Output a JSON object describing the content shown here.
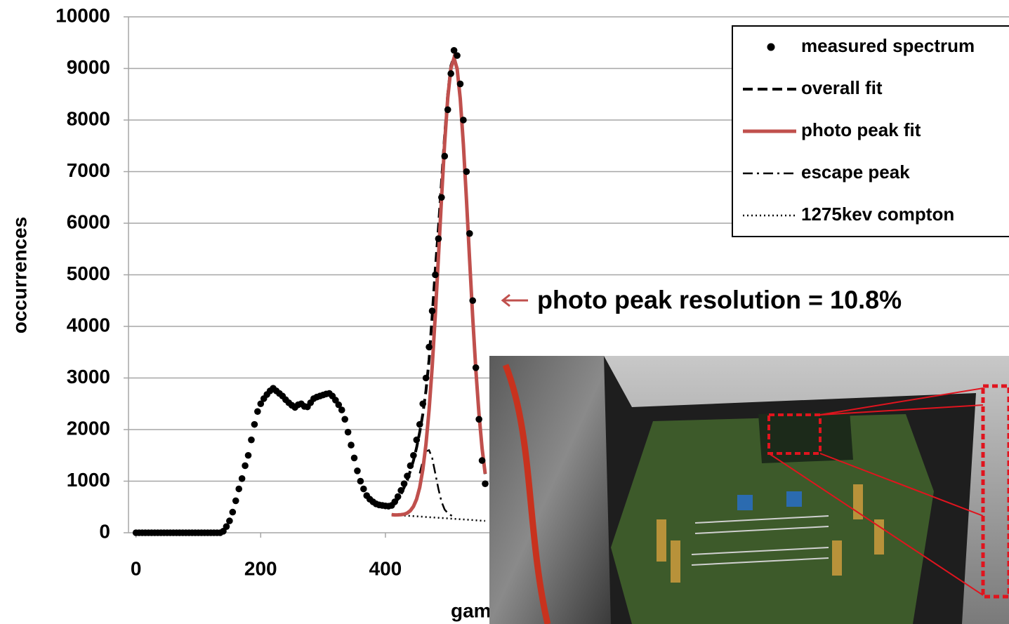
{
  "chart_data": {
    "type": "scatter-line",
    "y_label": "occurrences",
    "x_label": "gamma",
    "annotation": "photo peak resolution = 10.8%",
    "xlim": [
      -12,
      1400
    ],
    "xticks": [
      0,
      200,
      400
    ],
    "ylim": [
      0,
      10000
    ],
    "yticks": [
      0,
      1000,
      2000,
      3000,
      4000,
      5000,
      6000,
      7000,
      8000,
      9000,
      10000
    ],
    "grid": true,
    "legend": "top-right",
    "series": [
      {
        "name": "measured spectrum",
        "style": "dots",
        "color": "#000000",
        "x": [
          0,
          5,
          10,
          15,
          20,
          25,
          30,
          35,
          40,
          45,
          50,
          55,
          60,
          65,
          70,
          75,
          80,
          85,
          90,
          95,
          100,
          105,
          110,
          115,
          120,
          125,
          130,
          135,
          140,
          145,
          150,
          155,
          160,
          165,
          170,
          175,
          180,
          185,
          190,
          195,
          200,
          205,
          210,
          215,
          220,
          225,
          230,
          235,
          240,
          245,
          250,
          255,
          260,
          265,
          270,
          275,
          280,
          285,
          290,
          295,
          300,
          305,
          310,
          315,
          320,
          325,
          330,
          335,
          340,
          345,
          350,
          355,
          360,
          365,
          370,
          375,
          380,
          385,
          390,
          395,
          400,
          405,
          410,
          415,
          420,
          425,
          430,
          435,
          440,
          445,
          450,
          455,
          460,
          465,
          470,
          475,
          480,
          485,
          490,
          495,
          500,
          505,
          510,
          515,
          520,
          525,
          530,
          535,
          540,
          545,
          550,
          555,
          560
        ],
        "values": [
          0,
          0,
          0,
          0,
          0,
          0,
          0,
          0,
          0,
          0,
          0,
          0,
          0,
          0,
          0,
          0,
          0,
          0,
          0,
          0,
          0,
          0,
          0,
          0,
          0,
          0,
          0,
          0,
          30,
          120,
          230,
          400,
          620,
          850,
          1050,
          1300,
          1500,
          1800,
          2100,
          2350,
          2500,
          2600,
          2680,
          2750,
          2800,
          2750,
          2700,
          2650,
          2580,
          2520,
          2470,
          2430,
          2480,
          2500,
          2450,
          2440,
          2520,
          2600,
          2630,
          2650,
          2670,
          2690,
          2700,
          2650,
          2570,
          2480,
          2380,
          2200,
          1950,
          1700,
          1450,
          1200,
          1000,
          850,
          720,
          650,
          600,
          560,
          540,
          530,
          520,
          515,
          530,
          600,
          700,
          820,
          950,
          1100,
          1300,
          1500,
          1800,
          2100,
          2500,
          3000,
          3600,
          4300,
          5000,
          5700,
          6500,
          7300,
          8200,
          8900,
          9350,
          9250,
          8700,
          8000,
          7000,
          5800,
          4500,
          3200,
          2200,
          1400,
          950
        ]
      },
      {
        "name": "overall fit",
        "style": "dashed",
        "color": "#000000",
        "x": [
          410,
          415,
          420,
          425,
          430,
          435,
          440,
          445,
          450,
          455,
          460,
          465,
          470,
          475,
          480,
          485,
          490,
          495,
          500,
          505,
          510,
          515,
          520,
          525,
          530,
          535,
          540,
          545,
          550,
          555,
          560
        ],
        "values": [
          540,
          580,
          650,
          750,
          880,
          1020,
          1200,
          1400,
          1650,
          1950,
          2300,
          2750,
          3350,
          4200,
          5100,
          5900,
          6800,
          7700,
          8500,
          9050,
          9230,
          9000,
          8420,
          7530,
          6450,
          5300,
          4170,
          3160,
          2310,
          1640,
          1140
        ]
      },
      {
        "name": "photo peak fit",
        "style": "solid",
        "color": "#c0504d",
        "x": [
          410,
          415,
          420,
          425,
          430,
          435,
          440,
          445,
          450,
          455,
          460,
          465,
          470,
          475,
          480,
          485,
          490,
          495,
          500,
          505,
          510,
          515,
          520,
          525,
          530,
          535,
          540,
          545,
          550,
          555,
          560
        ],
        "values": [
          351,
          346,
          347,
          350,
          360,
          382,
          428,
          510,
          651,
          878,
          1224,
          1711,
          2377,
          3215,
          4220,
          5335,
          6484,
          7555,
          8431,
          9002,
          9200,
          8994,
          8415,
          7531,
          6452,
          5295,
          4172,
          3159,
          2313,
          1639,
          1144
        ]
      },
      {
        "name": "escape peak",
        "style": "dashdot",
        "color": "#000000",
        "x": [
          455,
          460,
          465,
          470,
          475,
          480,
          485,
          490,
          495,
          500,
          505,
          510
        ],
        "values": [
          1150,
          1400,
          1580,
          1600,
          1450,
          1150,
          850,
          600,
          450,
          380,
          340,
          300
        ]
      },
      {
        "name": "1275kev compton",
        "style": "dotted",
        "color": "#000000",
        "x": [
          410,
          560
        ],
        "values": [
          350,
          230
        ]
      }
    ]
  }
}
